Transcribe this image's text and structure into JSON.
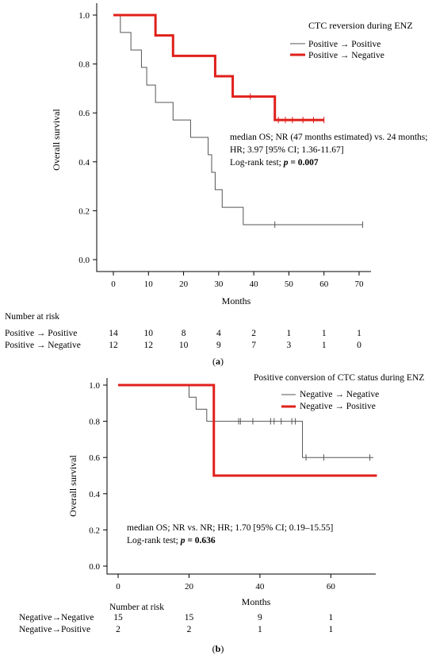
{
  "chart_data": [
    {
      "type": "line",
      "panel_label": "(a)",
      "xlabel": "Months",
      "ylabel": "Overall survival",
      "xlim": [
        0,
        70
      ],
      "ylim": [
        0,
        1
      ],
      "xticks": [
        0,
        10,
        20,
        30,
        40,
        50,
        60,
        70
      ],
      "yticks": [
        "0.0",
        "0.2",
        "0.4",
        "0.6",
        "0.8",
        "1.0"
      ],
      "legend_title": "CTC reversion during ENZ",
      "legend_position": "top-right",
      "series": [
        {
          "name": "Positive → Positive",
          "color": "#555555",
          "steps": [
            [
              0,
              1.0
            ],
            [
              2,
              0.929
            ],
            [
              5,
              0.857
            ],
            [
              8,
              0.786
            ],
            [
              9.5,
              0.714
            ],
            [
              12,
              0.643
            ],
            [
              17,
              0.571
            ],
            [
              22,
              0.5
            ],
            [
              27,
              0.429
            ],
            [
              28,
              0.357
            ],
            [
              29,
              0.286
            ],
            [
              31,
              0.214
            ],
            [
              37,
              0.143
            ],
            [
              71,
              0.143
            ]
          ],
          "censor_x": [
            46,
            71
          ]
        },
        {
          "name": "Positive → Negative",
          "color": "#e0201b",
          "steps": [
            [
              0,
              1.0
            ],
            [
              12,
              0.917
            ],
            [
              17,
              0.833
            ],
            [
              29,
              0.75
            ],
            [
              34,
              0.667
            ],
            [
              46,
              0.571
            ],
            [
              60,
              0.571
            ]
          ],
          "censor_x": [
            39,
            47,
            49,
            51,
            54,
            57,
            60
          ]
        }
      ],
      "annotation": {
        "line1": "median OS; NR (47 months estimated) vs. 24 months;",
        "line2": "HR; 3.97 [95% CI; 1.36-11.67]",
        "line3_prefix": "Log-rank test; ",
        "line3_p": "p",
        "line3_value": " = 0.007"
      },
      "risk_table": {
        "title": "Number at risk",
        "rows": [
          {
            "label": "Positive → Positive",
            "values": [
              "14",
              "10",
              "8",
              "4",
              "2",
              "1",
              "1",
              "1"
            ]
          },
          {
            "label": "Positive → Negative",
            "values": [
              "12",
              "12",
              "10",
              "9",
              "7",
              "3",
              "1",
              "0"
            ]
          }
        ]
      }
    },
    {
      "type": "line",
      "panel_label": "(b)",
      "xlabel": "Months",
      "ylabel": "Overall survival",
      "xlim": [
        0,
        72
      ],
      "ylim": [
        0,
        1
      ],
      "xticks": [
        0,
        20,
        40,
        60
      ],
      "yticks": [
        "0.0",
        "0.2",
        "0.4",
        "0.6",
        "0.8",
        "1.0"
      ],
      "legend_title": "Positive conversion of CTC status during ENZ",
      "legend_position": "top-right",
      "series": [
        {
          "name": "Negative → Negative",
          "color": "#555555",
          "steps": [
            [
              0,
              1.0
            ],
            [
              20,
              0.933
            ],
            [
              22,
              0.867
            ],
            [
              25,
              0.8
            ],
            [
              52,
              0.6
            ],
            [
              72,
              0.6
            ]
          ],
          "censor_x": [
            34,
            34.5,
            38,
            43,
            44,
            46,
            49,
            50,
            53,
            58,
            71
          ]
        },
        {
          "name": "Negative → Positive",
          "color": "#e0201b",
          "steps": [
            [
              0,
              1.0
            ],
            [
              27,
              0.5
            ],
            [
              73,
              0.5
            ]
          ],
          "censor_x": []
        }
      ],
      "annotation": {
        "line1": "median OS; NR vs. NR; HR; 1.70 [95% CI; 0.19–15.55]",
        "line2": "",
        "line3_prefix": "Log-rank test; ",
        "line3_p": "p",
        "line3_value": " = 0.636"
      },
      "risk_table": {
        "title": "Number at risk",
        "rows": [
          {
            "label": "Negative→Negative",
            "values": [
              "15",
              "15",
              "9",
              "1"
            ]
          },
          {
            "label": "Negative→Positive",
            "values": [
              "2",
              "2",
              "1",
              "1"
            ]
          }
        ]
      }
    }
  ]
}
